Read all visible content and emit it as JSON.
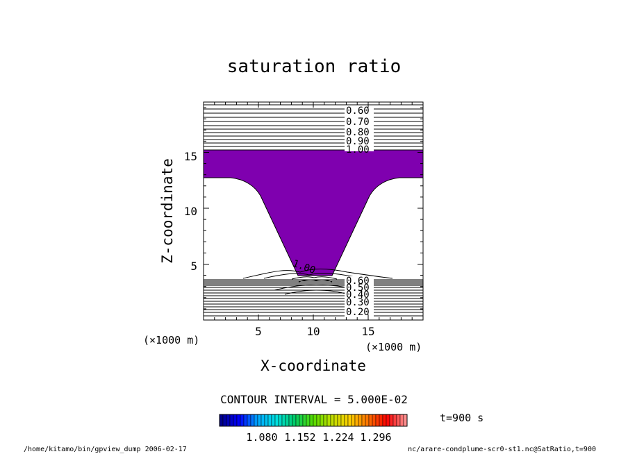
{
  "chart_data": {
    "type": "contour",
    "title": "saturation ratio",
    "xlabel": "X-coordinate",
    "ylabel": "Z-coordinate",
    "x_unit": "(×1000 m)",
    "y_unit": "(×1000 m)",
    "xlim": [
      0,
      20
    ],
    "ylim": [
      0,
      19.5
    ],
    "xticks": [
      5,
      10,
      15
    ],
    "yticks": [
      5,
      10,
      15
    ],
    "contour_interval_text": "CONTOUR INTERVAL = 5.000E-02",
    "contour_labels_upper": [
      "0.60",
      "0.70",
      "0.80",
      "0.90",
      "1.00"
    ],
    "contour_labels_lower": [
      "0.60",
      "0.50",
      "0.40",
      "0.30",
      "0.20"
    ],
    "center_label": "1.00",
    "supersaturated_region": {
      "color": "#7f00af",
      "upper_band_z": [
        13,
        15.5
      ],
      "plume_bottom_z": 4.1,
      "plume_bottom_x": [
        8.5,
        11.1
      ]
    },
    "colorbar": {
      "ticks": [
        "1.080",
        "1.152",
        "1.224",
        "1.296"
      ],
      "tick_values": [
        1.08,
        1.152,
        1.224,
        1.296
      ],
      "range": [
        1.024,
        1.372
      ],
      "colors": [
        "#00008c",
        "#0000ff",
        "#00aaff",
        "#00e0e0",
        "#00cc66",
        "#55dd00",
        "#c0e000",
        "#ffd000",
        "#ff7000",
        "#ff0000",
        "#ff9090"
      ]
    },
    "time_label": "t=900 s"
  },
  "footer": {
    "left": "/home/kitamo/bin/gpview_dump  2006-02-17",
    "right": "nc/arare-condplume-scr0-st1.nc@SatRatio,t=900"
  }
}
